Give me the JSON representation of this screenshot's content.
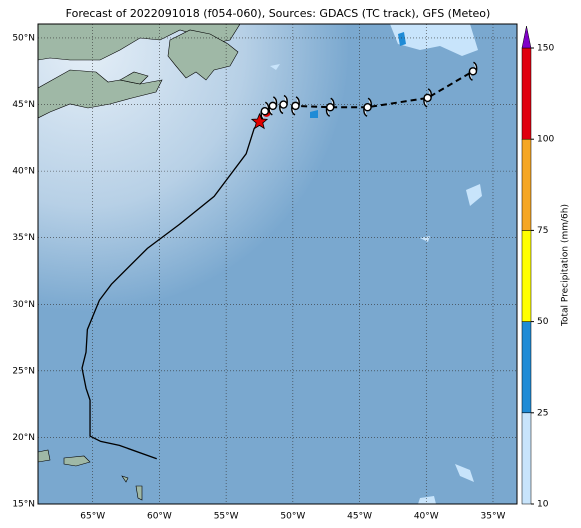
{
  "map": {
    "title": "Forecast of 2022091018 (f054-060), Sources: GDACS (TC track), GFS (Meteo)",
    "xlim": [
      -69.1,
      -33.2
    ],
    "ylim": [
      15,
      51.05
    ],
    "xticks": [
      {
        "value": -65,
        "label": "65°W"
      },
      {
        "value": -60,
        "label": "60°W"
      },
      {
        "value": -55,
        "label": "55°W"
      },
      {
        "value": -50,
        "label": "50°W"
      },
      {
        "value": -45,
        "label": "45°W"
      },
      {
        "value": -40,
        "label": "40°W"
      },
      {
        "value": -35,
        "label": "35°W"
      }
    ],
    "yticks": [
      {
        "value": 15,
        "label": "15°N"
      },
      {
        "value": 20,
        "label": "20°N"
      },
      {
        "value": 25,
        "label": "25°N"
      },
      {
        "value": 30,
        "label": "30°N"
      },
      {
        "value": 35,
        "label": "35°N"
      },
      {
        "value": 40,
        "label": "40°N"
      },
      {
        "value": 45,
        "label": "45°N"
      },
      {
        "value": 50,
        "label": "50°N"
      }
    ],
    "colorbar": {
      "label": "Total Precipitation (mm/6h)",
      "levels": [
        10,
        25,
        50,
        75,
        100,
        150
      ],
      "colors": [
        "#c8e4fb",
        "#1f8bd6",
        "#ffff00",
        "#f5a623",
        "#e0000f"
      ],
      "extend_color": "#8000c8"
    },
    "track": {
      "lon": [
        -60.2,
        -63.0,
        -64.4,
        -65.2,
        -65.2,
        -65.5,
        -65.8,
        -65.5,
        -65.4,
        -64.5,
        -63.6,
        -60.9,
        -58.5,
        -55.9,
        -53.5,
        -52.9,
        -52.5
      ],
      "lat": [
        18.4,
        19.4,
        19.7,
        20.1,
        22.8,
        23.7,
        25.2,
        26.4,
        28.1,
        30.3,
        31.5,
        34.2,
        36.0,
        38.1,
        41.3,
        43.2,
        43.7
      ],
      "color": "#000000"
    },
    "forecast": {
      "lon": [
        -52.5,
        -52.1,
        -51.5,
        -50.7,
        -49.8,
        -47.2,
        -44.4,
        -39.9,
        -36.5
      ],
      "lat": [
        43.7,
        44.5,
        44.9,
        45.0,
        44.9,
        44.8,
        44.8,
        45.5,
        47.5
      ]
    },
    "current": {
      "lon": -52.5,
      "lat": 43.7,
      "color": "#e00000"
    }
  }
}
